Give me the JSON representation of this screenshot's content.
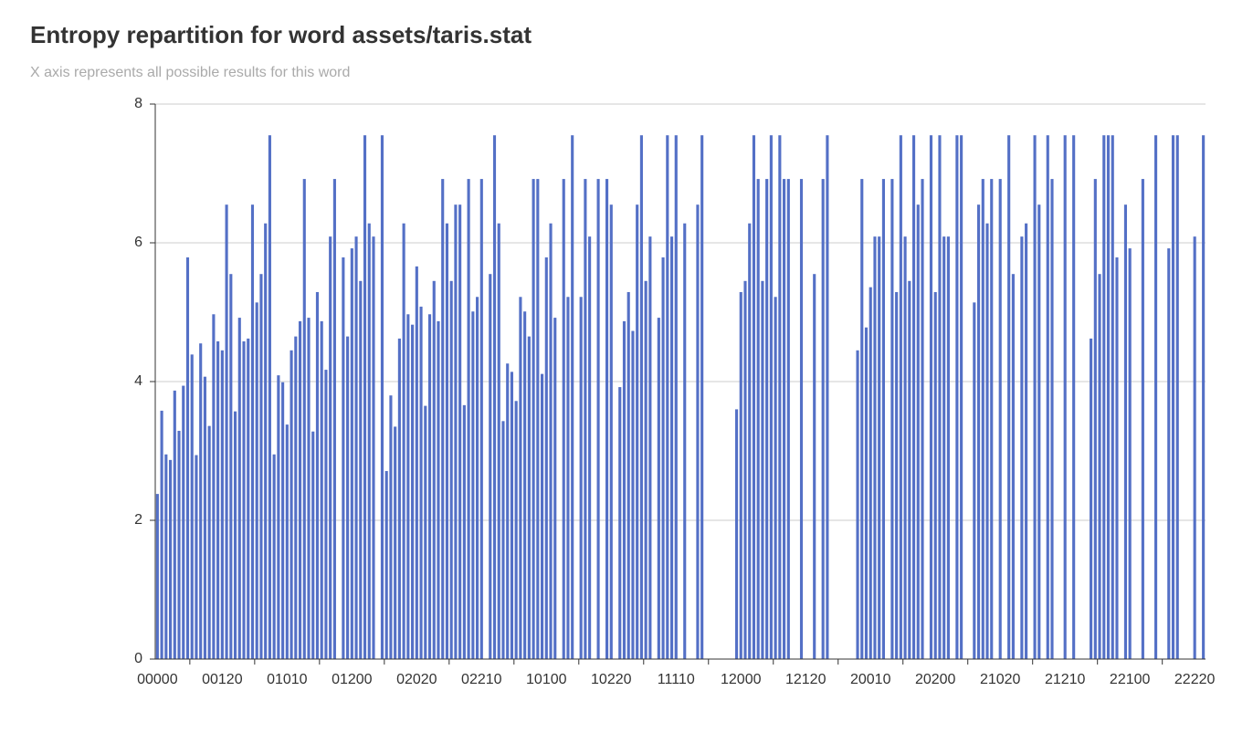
{
  "chart_data": {
    "type": "bar",
    "title": "Entropy repartition for word assets/taris.stat",
    "subtitle": "X axis represents all possible results for this word",
    "categories": [
      "00000",
      null,
      null,
      null,
      null,
      null,
      null,
      null,
      null,
      null,
      null,
      null,
      null,
      null,
      null,
      "00120",
      null,
      null,
      null,
      null,
      null,
      null,
      null,
      null,
      null,
      null,
      null,
      null,
      null,
      null,
      "01010",
      null,
      null,
      null,
      null,
      null,
      null,
      null,
      null,
      null,
      null,
      null,
      null,
      null,
      null,
      "01200",
      null,
      null,
      null,
      null,
      null,
      null,
      null,
      null,
      null,
      null,
      null,
      null,
      null,
      null,
      "02020",
      null,
      null,
      null,
      null,
      null,
      null,
      null,
      null,
      null,
      null,
      null,
      null,
      null,
      null,
      "02210",
      null,
      null,
      null,
      null,
      null,
      null,
      null,
      null,
      null,
      null,
      null,
      null,
      null,
      null,
      "10100",
      null,
      null,
      null,
      null,
      null,
      null,
      null,
      null,
      null,
      null,
      null,
      null,
      null,
      null,
      "10220",
      null,
      null,
      null,
      null,
      null,
      null,
      null,
      null,
      null,
      null,
      null,
      null,
      null,
      null,
      "11110",
      null,
      null,
      null,
      null,
      null,
      null,
      null,
      null,
      null,
      null,
      null,
      null,
      null,
      null,
      "12000",
      null,
      null,
      null,
      null,
      null,
      null,
      null,
      null,
      null,
      null,
      null,
      null,
      null,
      null,
      "12120",
      null,
      null,
      null,
      null,
      null,
      null,
      null,
      null,
      null,
      null,
      null,
      null,
      null,
      null,
      "20010",
      null,
      null,
      null,
      null,
      null,
      null,
      null,
      null,
      null,
      null,
      null,
      null,
      null,
      null,
      "20200",
      null,
      null,
      null,
      null,
      null,
      null,
      null,
      null,
      null,
      null,
      null,
      null,
      null,
      null,
      "21020",
      null,
      null,
      null,
      null,
      null,
      null,
      null,
      null,
      null,
      null,
      null,
      null,
      null,
      null,
      "21210",
      null,
      null,
      null,
      null,
      null,
      null,
      null,
      null,
      null,
      null,
      null,
      null,
      null,
      null,
      "22100",
      null,
      null,
      null,
      null,
      null,
      null,
      null,
      null,
      null,
      null,
      null,
      null,
      null,
      null,
      "22220",
      null,
      null
    ],
    "values": [
      2.38,
      3.58,
      2.95,
      2.87,
      3.87,
      3.29,
      3.94,
      5.79,
      4.39,
      2.94,
      4.55,
      4.07,
      3.36,
      4.97,
      4.58,
      4.45,
      6.55,
      5.55,
      3.57,
      4.92,
      4.58,
      4.62,
      6.55,
      5.14,
      5.55,
      6.28,
      7.55,
      2.95,
      4.09,
      3.99,
      3.38,
      4.45,
      4.65,
      4.87,
      6.92,
      4.92,
      3.28,
      5.29,
      4.87,
      4.17,
      6.09,
      6.92,
      0,
      5.79,
      4.65,
      5.92,
      6.09,
      5.45,
      7.55,
      6.28,
      6.09,
      0,
      7.55,
      2.71,
      3.8,
      3.35,
      4.62,
      6.28,
      4.97,
      4.82,
      5.66,
      5.08,
      3.65,
      4.97,
      5.45,
      4.87,
      6.92,
      6.28,
      5.45,
      6.55,
      6.55,
      3.66,
      6.92,
      5.01,
      5.22,
      6.92,
      0,
      5.55,
      7.55,
      6.28,
      3.43,
      4.26,
      4.14,
      3.72,
      5.22,
      5.01,
      4.65,
      6.92,
      6.92,
      4.11,
      5.79,
      6.28,
      4.92,
      0,
      6.92,
      5.22,
      7.55,
      0,
      5.22,
      6.92,
      6.09,
      0,
      6.92,
      0,
      6.92,
      6.55,
      0,
      3.92,
      4.87,
      5.29,
      4.73,
      6.55,
      7.55,
      5.45,
      6.09,
      0,
      4.92,
      5.79,
      7.55,
      6.09,
      7.55,
      0,
      6.28,
      0,
      0,
      6.55,
      7.55,
      0,
      0,
      0,
      0,
      0,
      0,
      0,
      3.6,
      5.29,
      5.45,
      6.28,
      7.55,
      6.92,
      5.45,
      6.92,
      7.55,
      5.22,
      7.55,
      6.92,
      6.92,
      0,
      0,
      6.92,
      0,
      0,
      5.55,
      0,
      6.92,
      7.55,
      0,
      0,
      0,
      0,
      0,
      0,
      4.45,
      6.92,
      4.78,
      5.36,
      6.09,
      6.09,
      6.92,
      0,
      6.92,
      5.29,
      7.55,
      6.09,
      5.45,
      7.55,
      6.55,
      6.92,
      0,
      7.55,
      5.29,
      7.55,
      6.09,
      6.09,
      0,
      7.55,
      7.55,
      0,
      0,
      5.14,
      6.55,
      6.92,
      6.28,
      6.92,
      0,
      6.92,
      0,
      7.55,
      5.55,
      0,
      6.09,
      6.28,
      0,
      7.55,
      6.55,
      0,
      7.55,
      6.92,
      0,
      0,
      7.55,
      0,
      7.55,
      0,
      0,
      0,
      4.62,
      6.92,
      5.55,
      7.55,
      7.55,
      7.55,
      5.79,
      0,
      6.55,
      5.92,
      0,
      0,
      6.92,
      0,
      0,
      7.55,
      0,
      0,
      5.92,
      7.55,
      7.55,
      0,
      0,
      0,
      6.09,
      0,
      7.55
    ],
    "color": "#5470c6",
    "ylim": [
      0,
      8
    ],
    "yticks": [
      0,
      2,
      4,
      6,
      8
    ],
    "grid": true
  }
}
